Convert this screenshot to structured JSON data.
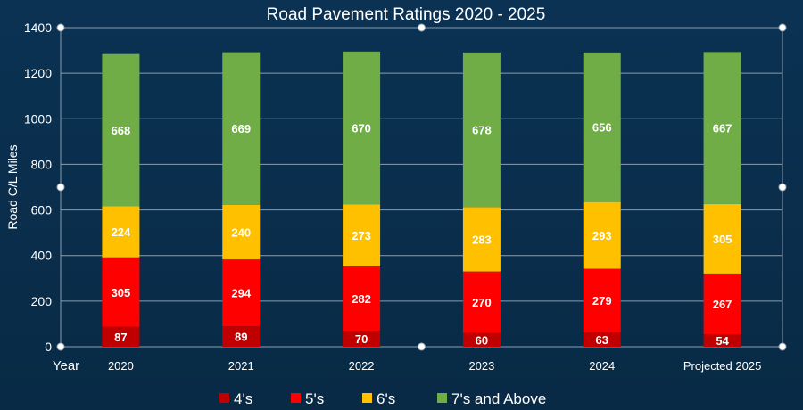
{
  "chart_data": {
    "type": "bar",
    "stacked": true,
    "title": "Road Pavement Ratings  2020 - 2025",
    "xlabel": "Year",
    "ylabel": "Road C/L  Miles",
    "ylim": [
      0,
      1400
    ],
    "yticks": [
      0,
      200,
      400,
      600,
      800,
      1000,
      1200,
      1400
    ],
    "grid": true,
    "legend_position": "bottom",
    "categories": [
      "2020",
      "2021",
      "2022",
      "2023",
      "2024",
      "Projected 2025"
    ],
    "series": [
      {
        "name": "4's",
        "color": "#c00000",
        "values": [
          87,
          89,
          70,
          60,
          63,
          54
        ]
      },
      {
        "name": "5's",
        "color": "#ff0000",
        "values": [
          305,
          294,
          282,
          270,
          279,
          267
        ]
      },
      {
        "name": "6's",
        "color": "#ffc000",
        "values": [
          224,
          240,
          273,
          283,
          293,
          305
        ]
      },
      {
        "name": "7's and Above",
        "color": "#70ad47",
        "values": [
          668,
          669,
          670,
          678,
          656,
          667
        ]
      }
    ],
    "background_color": "#0b3253"
  }
}
